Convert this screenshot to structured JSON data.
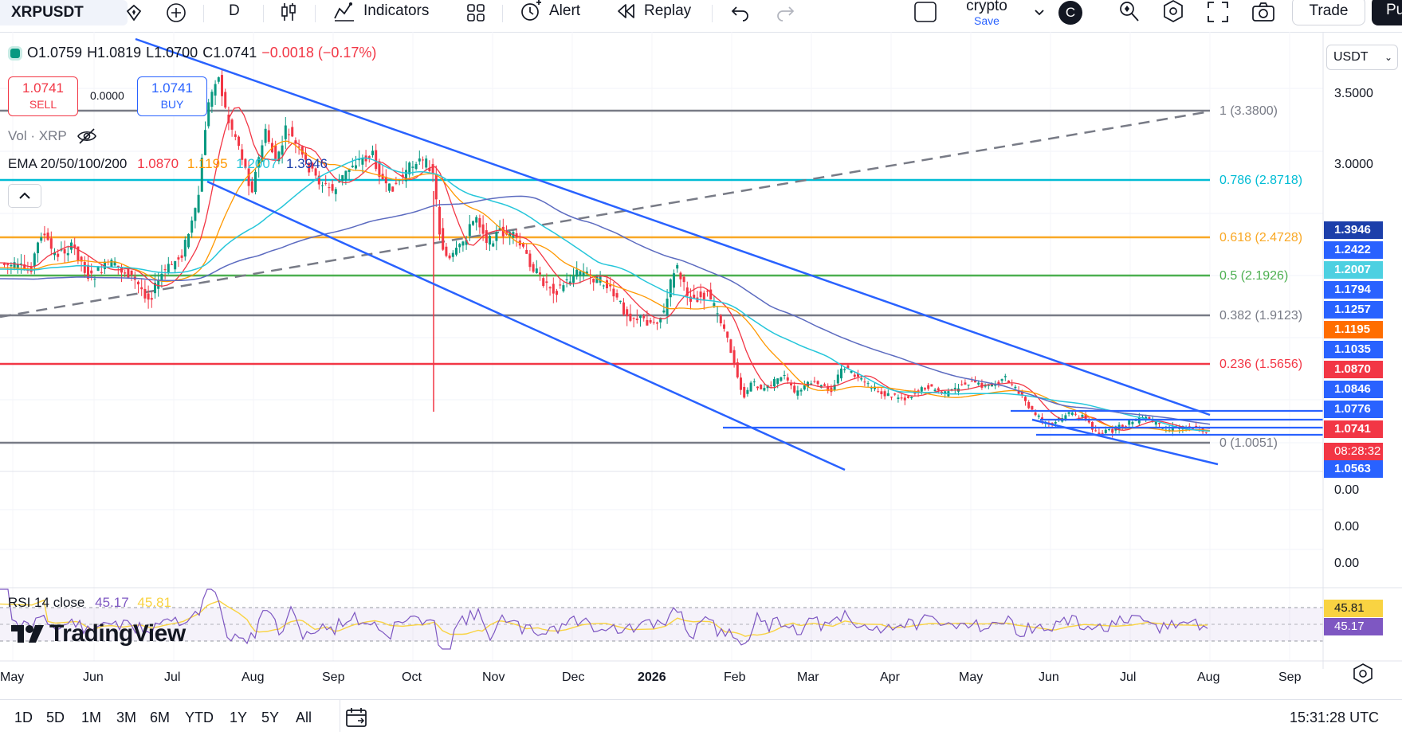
{
  "toolbar": {
    "symbol": "XRPUSDT",
    "interval": "D",
    "indicators_label": "Indicators",
    "alert_label": "Alert",
    "replay_label": "Replay",
    "layout_name": "crypto",
    "layout_save": "Save",
    "avatar_letter": "C",
    "trade_label": "Trade",
    "publish_label": "Pu"
  },
  "ohlc": {
    "open": "O1.0759",
    "high": "H1.0819",
    "low": "L1.0700",
    "close": "C1.0741",
    "change": "−0.0018 (−0.17%)"
  },
  "trade_buttons": {
    "sell_price": "1.0741",
    "sell_label": "SELL",
    "spread": "0.0000",
    "buy_price": "1.0741",
    "buy_label": "BUY"
  },
  "legends": {
    "vol": "Vol · XRP",
    "ema_label": "EMA 20/50/100/200",
    "ema20": "1.0870",
    "ema50": "1.1195",
    "ema100": "1.2007",
    "ema200": "1.3946",
    "rsi_label": "RSI 14 close",
    "rsi_value": "45.17",
    "rsi_ma": "45.81"
  },
  "currency": "USDT",
  "price_axis": [
    "3.5000",
    "3.0000"
  ],
  "fib_levels": [
    {
      "label": "1 (3.3800)",
      "color": "#787b86"
    },
    {
      "label": "0.786 (2.8718)",
      "color": "#00bcd4"
    },
    {
      "label": "0.618 (2.4728)",
      "color": "#f9a825"
    },
    {
      "label": "0.5 (2.1926)",
      "color": "#4caf50"
    },
    {
      "label": "0.382 (1.9123)",
      "color": "#787b86"
    },
    {
      "label": "0.236 (1.5656)",
      "color": "#f23645"
    },
    {
      "label": "0 (1.0051)",
      "color": "#787b86"
    }
  ],
  "price_labels": [
    {
      "value": "1.3946",
      "color": "#1c3faa"
    },
    {
      "value": "1.2422",
      "color": "#2962ff"
    },
    {
      "value": "1.2007",
      "color": "#4dd0e1"
    },
    {
      "value": "1.1794",
      "color": "#2962ff"
    },
    {
      "value": "1.1257",
      "color": "#2962ff"
    },
    {
      "value": "1.1195",
      "color": "#ff6d00"
    },
    {
      "value": "1.1035",
      "color": "#2962ff"
    },
    {
      "value": "1.0870",
      "color": "#f23645"
    },
    {
      "value": "1.0846",
      "color": "#2962ff"
    },
    {
      "value": "1.0776",
      "color": "#2962ff"
    },
    {
      "value": "1.0741",
      "color": "#f23645"
    },
    {
      "value": "1.0563",
      "color": "#2962ff"
    }
  ],
  "countdown": "08:28:32",
  "volume_axis": [
    "0.00",
    "0.00",
    "0.00"
  ],
  "rsi_axis": [
    {
      "value": "45.81",
      "color": "#f9d342"
    },
    {
      "value": "45.17",
      "color": "#7e57c2"
    }
  ],
  "time_axis": [
    "May",
    "Jun",
    "Jul",
    "Aug",
    "Sep",
    "Oct",
    "Nov",
    "Dec",
    "2026",
    "Feb",
    "Mar",
    "Apr",
    "May",
    "Jun",
    "Jul",
    "Aug",
    "Sep"
  ],
  "ranges": [
    "1D",
    "5D",
    "1M",
    "3M",
    "6M",
    "YTD",
    "1Y",
    "5Y",
    "All"
  ],
  "clock": "15:31:28 UTC",
  "brand": "TradingView"
}
